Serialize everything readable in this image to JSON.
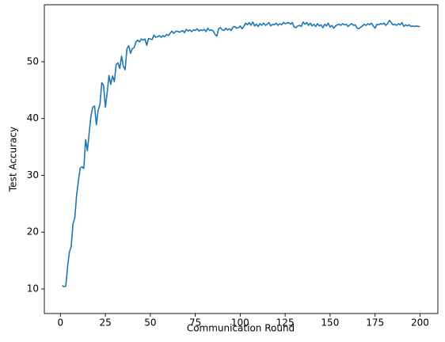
{
  "chart_data": {
    "type": "line",
    "x_label": "Communication Round",
    "y_label": "Test Accuracy",
    "color": "#1f77b4",
    "x": [
      1,
      2,
      3,
      4,
      5,
      6,
      7,
      8,
      9,
      10,
      11,
      12,
      13,
      14,
      15,
      16,
      17,
      18,
      19,
      20,
      21,
      22,
      23,
      24,
      25,
      26,
      27,
      28,
      29,
      30,
      31,
      32,
      33,
      34,
      35,
      36,
      37,
      38,
      39,
      40,
      41,
      42,
      43,
      44,
      45,
      46,
      47,
      48,
      49,
      50,
      51,
      52,
      53,
      54,
      55,
      56,
      57,
      58,
      59,
      60,
      61,
      62,
      63,
      64,
      65,
      66,
      67,
      68,
      69,
      70,
      71,
      72,
      73,
      74,
      75,
      76,
      77,
      78,
      79,
      80,
      81,
      82,
      83,
      84,
      85,
      86,
      87,
      88,
      89,
      90,
      91,
      92,
      93,
      94,
      95,
      96,
      97,
      98,
      99,
      100,
      101,
      102,
      103,
      104,
      105,
      106,
      107,
      108,
      109,
      110,
      111,
      112,
      113,
      114,
      115,
      116,
      117,
      118,
      119,
      120,
      121,
      122,
      123,
      124,
      125,
      126,
      127,
      128,
      129,
      130,
      131,
      132,
      133,
      134,
      135,
      136,
      137,
      138,
      139,
      140,
      141,
      142,
      143,
      144,
      145,
      146,
      147,
      148,
      149,
      150,
      151,
      152,
      153,
      154,
      155,
      156,
      157,
      158,
      159,
      160,
      161,
      162,
      163,
      164,
      165,
      166,
      167,
      168,
      169,
      170,
      171,
      172,
      173,
      174,
      175,
      176,
      177,
      178,
      179,
      180,
      181,
      182,
      183,
      184,
      185,
      186,
      187,
      188,
      189,
      190,
      191,
      192,
      193,
      194,
      195,
      196,
      197,
      198,
      199,
      200
    ],
    "values": [
      10.6,
      10.4,
      10.5,
      14,
      16.5,
      17.5,
      21.5,
      22.5,
      26.5,
      29,
      31.3,
      31.5,
      31.2,
      36.3,
      34.3,
      37.5,
      40.5,
      42,
      42.2,
      38.9,
      41.5,
      42.5,
      46.3,
      45.8,
      42,
      44.5,
      47.6,
      46,
      47.5,
      46.5,
      49.5,
      49.8,
      48.8,
      51,
      49.2,
      48.6,
      52.3,
      52.8,
      51.5,
      52.3,
      52.5,
      53.5,
      53.8,
      53.5,
      54,
      53.8,
      54,
      52.9,
      54.1,
      54,
      53.9,
      54.7,
      54.3,
      54.4,
      54.6,
      54.3,
      54.6,
      54.4,
      54.8,
      54.6,
      55,
      55.4,
      55,
      55.3,
      55.4,
      55.2,
      55.3,
      55.5,
      55.1,
      55.7,
      55.4,
      55.6,
      55.3,
      55.6,
      55.5,
      55.8,
      55.4,
      55.6,
      55.5,
      55.7,
      55.3,
      55.9,
      55.5,
      55.6,
      55.4,
      54.8,
      54.5,
      55.8,
      56,
      55.6,
      55.5,
      55.9,
      55.6,
      55.8,
      55.5,
      56.1,
      56.2,
      55.9,
      56,
      56.3,
      55.8,
      56.2,
      56.8,
      56.5,
      56.9,
      56.4,
      57,
      56.3,
      56.6,
      56.2,
      56.7,
      56.4,
      56.8,
      56.4,
      56.6,
      56.9,
      56.3,
      56.6,
      56.5,
      56.8,
      56.4,
      56.7,
      56.5,
      56.9,
      56.7,
      56.8,
      56.9,
      56.6,
      56.9,
      56.1,
      56,
      56.3,
      56.4,
      56.2,
      57,
      56.6,
      56.9,
      56.4,
      56.8,
      56.3,
      56.6,
      56.2,
      56.7,
      56.3,
      56.5,
      56,
      56.6,
      56.3,
      56.8,
      56.1,
      56.4,
      55.9,
      56.3,
      56.5,
      56.6,
      56.4,
      56.7,
      56.5,
      56.6,
      56.2,
      56.5,
      56.7,
      56.4,
      56.5,
      55.9,
      55.8,
      56.1,
      56.3,
      56.6,
      56.4,
      56.7,
      56.5,
      56.8,
      56.3,
      55.9,
      56.6,
      56.5,
      56.7,
      56.6,
      56.8,
      56.4,
      56.7,
      57.3,
      56.9,
      56.5,
      56.6,
      56.4,
      56.7,
      56.5,
      56.9,
      56.2,
      56.5,
      56.3,
      56.5,
      56.2,
      56.3,
      56.2,
      56.3,
      56.2,
      56.2
    ],
    "xlim": [
      -8.95,
      209.95
    ],
    "xticks": [
      0,
      25,
      50,
      75,
      100,
      125,
      150,
      175,
      200
    ],
    "ylim": [
      5.68,
      60.03
    ],
    "yticks": [
      10,
      20,
      30,
      40,
      50
    ],
    "grid": false
  }
}
